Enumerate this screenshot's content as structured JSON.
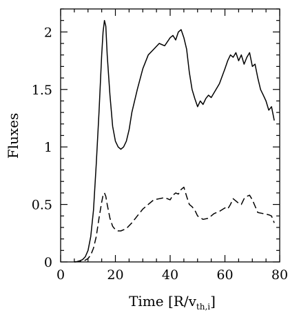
{
  "chart_data": {
    "type": "line",
    "xlabel": "Time [R/v",
    "xlabel_subscript": "th,i",
    "xlabel_suffix": "]",
    "ylabel": "Fluxes",
    "xlim": [
      0,
      80
    ],
    "ylim": [
      0,
      2.2
    ],
    "x_ticks": [
      0,
      20,
      40,
      60,
      80
    ],
    "y_ticks": [
      0,
      0.5,
      1,
      1.5,
      2
    ],
    "x_tick_labels": [
      "0",
      "20",
      "40",
      "60",
      "80"
    ],
    "y_tick_labels": [
      "0",
      "0.5",
      "1",
      "1.5",
      "2"
    ],
    "grid": false,
    "legend": "none",
    "series": [
      {
        "style": "solid",
        "x": [
          5,
          6,
          7,
          8,
          9,
          10,
          11,
          12,
          13,
          14,
          15,
          15.5,
          16,
          16.5,
          17,
          18,
          19,
          20,
          21,
          22,
          23,
          24,
          25,
          26,
          28,
          30,
          32,
          34,
          36,
          38,
          40,
          41,
          42,
          43,
          44,
          45,
          46,
          47,
          48,
          49,
          50,
          51,
          52,
          53,
          54,
          55,
          56,
          58,
          60,
          61,
          62,
          63,
          64,
          65,
          66,
          67,
          68,
          69,
          70,
          71,
          72,
          73,
          74,
          75,
          76,
          77,
          78
        ],
        "y": [
          0,
          0.003,
          0.01,
          0.02,
          0.045,
          0.1,
          0.22,
          0.45,
          0.85,
          1.3,
          1.8,
          2.0,
          2.1,
          2.05,
          1.8,
          1.45,
          1.18,
          1.05,
          1.0,
          0.98,
          1.0,
          1.05,
          1.15,
          1.3,
          1.5,
          1.68,
          1.8,
          1.85,
          1.9,
          1.88,
          1.95,
          1.97,
          1.93,
          2.0,
          2.02,
          1.95,
          1.85,
          1.65,
          1.5,
          1.42,
          1.35,
          1.4,
          1.37,
          1.42,
          1.45,
          1.43,
          1.47,
          1.55,
          1.68,
          1.75,
          1.8,
          1.78,
          1.82,
          1.75,
          1.8,
          1.72,
          1.78,
          1.82,
          1.7,
          1.72,
          1.6,
          1.5,
          1.45,
          1.4,
          1.32,
          1.35,
          1.23
        ]
      },
      {
        "style": "dashed",
        "x": [
          5,
          6,
          7,
          8,
          9,
          10,
          11,
          12,
          13,
          14,
          15,
          15.5,
          16,
          16.5,
          17,
          18,
          19,
          20,
          21,
          22,
          24,
          26,
          28,
          30,
          32,
          34,
          36,
          38,
          40,
          41,
          42,
          43,
          44,
          45,
          46,
          47,
          48,
          49,
          50,
          52,
          54,
          56,
          58,
          60,
          61,
          62,
          63,
          64,
          65,
          66,
          67,
          68,
          69,
          70,
          72,
          74,
          76,
          77,
          78
        ],
        "y": [
          0,
          0.001,
          0.003,
          0.008,
          0.015,
          0.03,
          0.06,
          0.12,
          0.22,
          0.38,
          0.52,
          0.58,
          0.6,
          0.57,
          0.5,
          0.38,
          0.31,
          0.28,
          0.27,
          0.27,
          0.29,
          0.34,
          0.4,
          0.46,
          0.5,
          0.54,
          0.55,
          0.56,
          0.54,
          0.58,
          0.6,
          0.59,
          0.63,
          0.65,
          0.57,
          0.5,
          0.48,
          0.45,
          0.4,
          0.37,
          0.38,
          0.42,
          0.44,
          0.47,
          0.46,
          0.5,
          0.55,
          0.53,
          0.51,
          0.5,
          0.55,
          0.57,
          0.58,
          0.54,
          0.43,
          0.42,
          0.41,
          0.4,
          0.34
        ]
      }
    ]
  },
  "colors": {
    "line": "#000000",
    "background": "#ffffff"
  }
}
